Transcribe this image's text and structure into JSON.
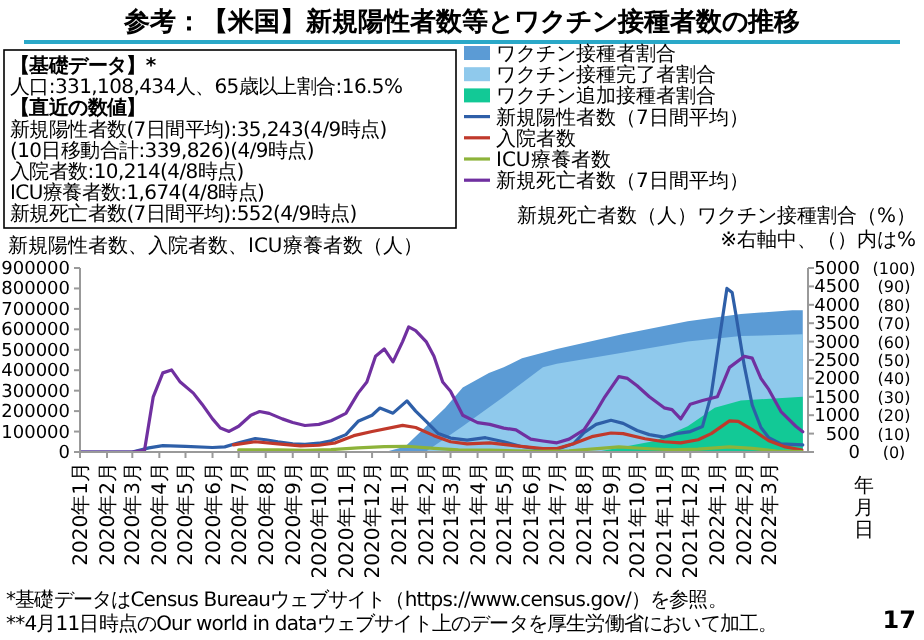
{
  "chart_data": {
    "type": "line",
    "title": "参考：【米国】新規陽性者数等とワクチン接種者数の推移",
    "xlabel": "年月日",
    "ylabel": "新規陽性者数、入院者数、ICU療養者数（人）",
    "y2label": "新規死亡者数（人）ワクチン接種割合（%）",
    "legend": "top",
    "xlim": [
      "2020-01-01",
      "2022-04-15"
    ],
    "xticks": [
      {
        "value": "2020-01",
        "label": "2020年1月"
      },
      {
        "value": "2020-02",
        "label": "2020年2月"
      },
      {
        "value": "2020-03",
        "label": "2020年3月"
      },
      {
        "value": "2020-04",
        "label": "2020年4月"
      },
      {
        "value": "2020-05",
        "label": "2020年5月"
      },
      {
        "value": "2020-06",
        "label": "2020年6月"
      },
      {
        "value": "2020-07",
        "label": "2020年7月"
      },
      {
        "value": "2020-08",
        "label": "2020年8月"
      },
      {
        "value": "2020-09",
        "label": "2020年9月"
      },
      {
        "value": "2020-10",
        "label": "2020年10月"
      },
      {
        "value": "2020-11",
        "label": "2020年11月"
      },
      {
        "value": "2020-12",
        "label": "2020年12月"
      },
      {
        "value": "2021-01",
        "label": "2021年1月"
      },
      {
        "value": "2021-02",
        "label": "2021年2月"
      },
      {
        "value": "2021-03",
        "label": "2021年3月"
      },
      {
        "value": "2021-04",
        "label": "2021年4月"
      },
      {
        "value": "2021-05",
        "label": "2021年5月"
      },
      {
        "value": "2021-06",
        "label": "2021年6月"
      },
      {
        "value": "2021-07",
        "label": "2021年7月"
      },
      {
        "value": "2021-08",
        "label": "2021年8月"
      },
      {
        "value": "2021-09",
        "label": "2021年9月"
      },
      {
        "value": "2021-10",
        "label": "2021年10月"
      },
      {
        "value": "2021-11",
        "label": "2021年11月"
      },
      {
        "value": "2021-12",
        "label": "2021年12月"
      },
      {
        "value": "2022-01",
        "label": "2022年1月"
      },
      {
        "value": "2022-02",
        "label": "2022年2月"
      },
      {
        "value": "2022-03",
        "label": "2022年3月"
      }
    ],
    "ylim": [
      0,
      900000
    ],
    "yticks": [
      0,
      100000,
      200000,
      300000,
      400000,
      500000,
      600000,
      700000,
      800000,
      900000
    ],
    "y2lim": [
      0,
      5000
    ],
    "y2ticks": [
      0,
      500,
      1000,
      1500,
      2000,
      2500,
      3000,
      3500,
      4000,
      4500,
      5000
    ],
    "y3lim": [
      0,
      100
    ],
    "y3ticks": [
      {
        "value": 0,
        "label": "(0)"
      },
      {
        "value": 10,
        "label": "(10)"
      },
      {
        "value": 20,
        "label": "(20)"
      },
      {
        "value": 30,
        "label": "(30)"
      },
      {
        "value": 40,
        "label": "(40)"
      },
      {
        "value": 50,
        "label": "(50)"
      },
      {
        "value": 60,
        "label": "(60)"
      },
      {
        "value": 70,
        "label": "(70)"
      },
      {
        "value": 80,
        "label": "(80)"
      },
      {
        "value": 90,
        "label": "(90)"
      },
      {
        "value": 100,
        "label": "(100)"
      }
    ],
    "series": [
      {
        "name": "ワクチン接種者割合",
        "type": "area",
        "axis": "y3",
        "color": "#5b9bd5",
        "x": [
          "2020-12-16",
          "2021-01-08",
          "2021-02-23",
          "2021-03-15",
          "2021-04-14",
          "2021-05-01",
          "2021-05-22",
          "2021-07-01",
          "2021-09-14",
          "2021-11-28",
          "2022-01-28",
          "2022-03-28",
          "2022-04-09"
        ],
        "values": [
          0,
          3,
          24,
          35,
          43,
          46,
          51,
          56,
          64,
          71,
          75,
          77,
          77
        ]
      },
      {
        "name": "ワクチン接種完了者割合",
        "type": "area",
        "axis": "y3",
        "color": "#8fc9ec",
        "x": [
          "2021-01-31",
          "2021-03-15",
          "2021-05-01",
          "2021-06-15",
          "2021-07-01",
          "2021-09-14",
          "2021-11-28",
          "2022-01-28",
          "2022-04-09"
        ],
        "values": [
          0,
          14,
          30,
          46,
          48,
          54,
          60,
          63,
          64
        ]
      },
      {
        "name": "ワクチン追加接種者割合",
        "type": "area",
        "axis": "y3",
        "color": "#12c996",
        "x": [
          "2021-08-15",
          "2021-10-21",
          "2021-11-28",
          "2021-12-29",
          "2022-01-28",
          "2022-04-09"
        ],
        "values": [
          0,
          6,
          14,
          24,
          28,
          30
        ]
      },
      {
        "name": "新規陽性者数（7日間平均）",
        "color": "#2e5fa8",
        "x": [
          "2020-01-01",
          "2020-03-01",
          "2020-03-20",
          "2020-04-05",
          "2020-05-01",
          "2020-06-01",
          "2020-06-15",
          "2020-07-01",
          "2020-07-20",
          "2020-08-01",
          "2020-08-15",
          "2020-09-01",
          "2020-09-15",
          "2020-10-01",
          "2020-10-15",
          "2020-11-01",
          "2020-11-15",
          "2020-12-01",
          "2020-12-10",
          "2020-12-25",
          "2021-01-10",
          "2021-01-20",
          "2021-02-01",
          "2021-02-15",
          "2021-03-01",
          "2021-03-20",
          "2021-04-10",
          "2021-05-01",
          "2021-05-20",
          "2021-06-15",
          "2021-07-01",
          "2021-07-20",
          "2021-08-01",
          "2021-08-15",
          "2021-09-01",
          "2021-09-15",
          "2021-10-01",
          "2021-10-15",
          "2021-11-01",
          "2021-11-15",
          "2021-12-01",
          "2021-12-15",
          "2021-12-25",
          "2022-01-05",
          "2022-01-12",
          "2022-01-18",
          "2022-01-22",
          "2022-02-01",
          "2022-02-10",
          "2022-02-20",
          "2022-03-01",
          "2022-03-15",
          "2022-04-09"
        ],
        "values": [
          0,
          0,
          20000,
          31000,
          28000,
          22000,
          25000,
          45000,
          66000,
          60000,
          50000,
          40000,
          38000,
          43000,
          55000,
          85000,
          150000,
          180000,
          215000,
          190000,
          250000,
          200000,
          150000,
          90000,
          68000,
          58000,
          70000,
          50000,
          28000,
          12000,
          13000,
          40000,
          95000,
          135000,
          155000,
          140000,
          105000,
          85000,
          73000,
          90000,
          100000,
          125000,
          280000,
          600000,
          800000,
          780000,
          680000,
          420000,
          230000,
          120000,
          70000,
          40000,
          35000
        ]
      },
      {
        "name": "入院者数",
        "color": "#c0392b",
        "x": [
          "2020-06-25",
          "2020-07-20",
          "2020-08-15",
          "2020-09-10",
          "2020-10-01",
          "2020-10-20",
          "2020-11-10",
          "2020-12-01",
          "2021-01-05",
          "2021-01-20",
          "2021-02-10",
          "2021-03-01",
          "2021-03-20",
          "2021-04-15",
          "2021-05-15",
          "2021-06-15",
          "2021-07-01",
          "2021-07-20",
          "2021-08-10",
          "2021-09-01",
          "2021-09-15",
          "2021-10-10",
          "2021-11-01",
          "2021-11-20",
          "2021-12-10",
          "2021-12-25",
          "2022-01-15",
          "2022-01-25",
          "2022-02-10",
          "2022-03-01",
          "2022-03-20",
          "2022-04-08"
        ],
        "values": [
          35000,
          50000,
          40000,
          30000,
          33000,
          45000,
          80000,
          100000,
          130000,
          120000,
          80000,
          50000,
          40000,
          45000,
          30000,
          17000,
          17000,
          40000,
          75000,
          93000,
          90000,
          65000,
          50000,
          45000,
          60000,
          90000,
          152000,
          150000,
          110000,
          55000,
          25000,
          10000
        ]
      },
      {
        "name": "ICU療養者数",
        "color": "#8db33a",
        "x": [
          "2020-07-01",
          "2020-08-15",
          "2020-09-15",
          "2020-10-15",
          "2020-11-15",
          "2020-12-15",
          "2021-01-10",
          "2021-02-10",
          "2021-03-10",
          "2021-04-15",
          "2021-05-15",
          "2021-06-15",
          "2021-07-15",
          "2021-08-20",
          "2021-09-10",
          "2021-10-10",
          "2021-11-10",
          "2021-12-10",
          "2022-01-15",
          "2022-02-10",
          "2022-03-10",
          "2022-04-08"
        ],
        "values": [
          10000,
          11000,
          8000,
          12000,
          20000,
          26000,
          28000,
          18000,
          10000,
          9000,
          6000,
          3000,
          6000,
          18000,
          25000,
          17000,
          11000,
          14000,
          25000,
          18000,
          5000,
          2000
        ]
      },
      {
        "name": "新規死亡者数（7日間平均）",
        "axis": "y2",
        "color": "#7030a0",
        "x": [
          "2020-01-01",
          "2020-03-01",
          "2020-03-15",
          "2020-03-25",
          "2020-04-05",
          "2020-04-15",
          "2020-04-25",
          "2020-05-10",
          "2020-05-20",
          "2020-06-01",
          "2020-06-10",
          "2020-06-20",
          "2020-07-01",
          "2020-07-15",
          "2020-07-25",
          "2020-08-05",
          "2020-08-20",
          "2020-09-01",
          "2020-09-15",
          "2020-10-01",
          "2020-10-15",
          "2020-11-01",
          "2020-11-15",
          "2020-11-25",
          "2020-12-05",
          "2020-12-15",
          "2020-12-25",
          "2021-01-05",
          "2021-01-12",
          "2021-01-20",
          "2021-02-01",
          "2021-02-10",
          "2021-02-20",
          "2021-03-01",
          "2021-03-15",
          "2021-04-01",
          "2021-04-15",
          "2021-05-01",
          "2021-05-15",
          "2021-06-01",
          "2021-06-15",
          "2021-07-01",
          "2021-07-15",
          "2021-08-01",
          "2021-08-15",
          "2021-08-25",
          "2021-09-10",
          "2021-09-20",
          "2021-10-01",
          "2021-10-15",
          "2021-11-01",
          "2021-11-10",
          "2021-11-20",
          "2021-12-01",
          "2021-12-15",
          "2022-01-01",
          "2022-01-15",
          "2022-02-01",
          "2022-02-10",
          "2022-02-20",
          "2022-03-01",
          "2022-03-15",
          "2022-04-01",
          "2022-04-09"
        ],
        "values": [
          0,
          0,
          50,
          1500,
          2150,
          2230,
          1900,
          1600,
          1300,
          900,
          650,
          560,
          700,
          1000,
          1100,
          1050,
          900,
          800,
          720,
          750,
          850,
          1050,
          1600,
          1900,
          2600,
          2800,
          2450,
          3000,
          3400,
          3300,
          3000,
          2600,
          1900,
          1650,
          1000,
          800,
          750,
          650,
          600,
          350,
          300,
          250,
          350,
          600,
          1100,
          1500,
          2050,
          2000,
          1800,
          1500,
          1200,
          1150,
          900,
          1300,
          1400,
          1500,
          2300,
          2600,
          2550,
          2000,
          1700,
          1100,
          700,
          550
        ]
      }
    ],
    "annotations": [
      "【基礎データ】*",
      "人口:331,108,434人、65歳以上割合:16.5%",
      "【直近の数値】",
      "新規陽性者数(7日間平均):35,243(4/9時点)",
      "(10日移動合計:339,826)(4/9時点)",
      "入院者数:10,214(4/8時点)",
      "ICU療養者数:1,674(4/8時点)",
      "新規死亡者数(7日間平均):552(4/9時点)",
      "※右軸中、（）内は%",
      "*基礎データはCensus Bureauウェブサイト（https://www.census.gov/）を参照。",
      "**4月11日時点のOur world in dataウェブサイト上のデータを厚生労働省において加工。",
      "17"
    ]
  }
}
